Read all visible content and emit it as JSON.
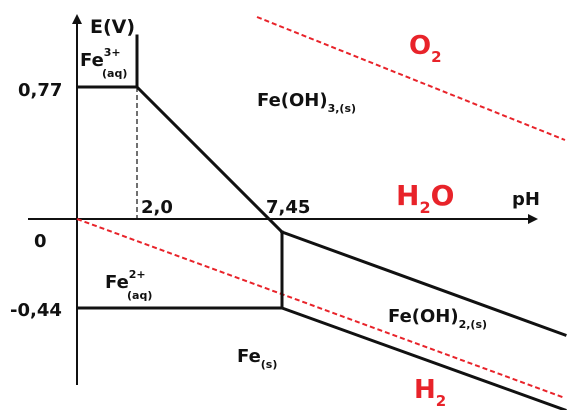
{
  "axes": {
    "y_label": "E(V)",
    "x_label": "pH",
    "origin": "0",
    "y_ticks": [
      "0,77",
      "-0,44"
    ],
    "x_ticks": [
      "2,0",
      "7,45"
    ]
  },
  "species": {
    "fe3": {
      "base": "Fe",
      "sup": "3+",
      "sub": "(aq)"
    },
    "fe2": {
      "base": "Fe",
      "sup": "2+",
      "sub": "(aq)"
    },
    "feoh3": {
      "base": "Fe(OH)",
      "sub": "3,(s)"
    },
    "feoh2": {
      "base": "Fe(OH)",
      "sub": "2,(s)"
    },
    "fe": {
      "base": "Fe",
      "sub": "(s)"
    }
  },
  "water": {
    "o2": {
      "base": "O",
      "sub": "2"
    },
    "h2o": {
      "base": "H",
      "sub": "2",
      "tail": "O"
    },
    "h2": {
      "base": "H",
      "sub": "2"
    }
  },
  "colors": {
    "lines": "#111111",
    "water": "#e8232a"
  }
}
